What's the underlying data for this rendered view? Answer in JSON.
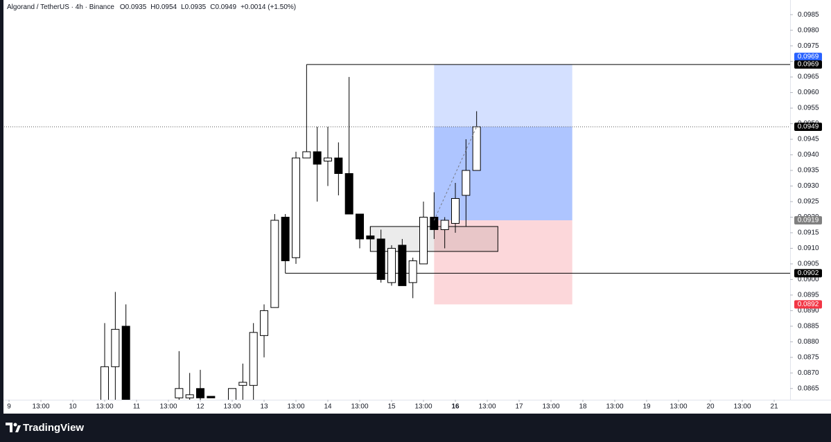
{
  "header": {
    "symbol": "Algorand / TetherUS · 4h · Binance",
    "ohlc": [
      "O0.0935",
      "H0.0954",
      "L0.0935",
      "C0.0949"
    ],
    "change": "+0.0014 (+1.50%)"
  },
  "chart_data": {
    "type": "candlestick",
    "x": [
      36,
      40,
      44,
      64,
      68,
      72,
      76,
      84,
      88,
      92,
      96,
      100,
      104,
      108,
      112,
      116,
      120,
      124,
      128,
      132,
      136,
      140,
      144,
      148,
      152,
      156,
      160,
      164,
      168,
      172,
      176
    ],
    "open": [
      0.086,
      0.0872,
      0.0885,
      0.0862,
      0.0862,
      0.0865,
      0.08625,
      0.086,
      0.0866,
      0.0866,
      0.0882,
      0.0891,
      0.092,
      0.0907,
      0.0939,
      0.0941,
      0.0938,
      0.0939,
      0.0934,
      0.0921,
      0.0914,
      0.0913,
      0.0899,
      0.0911,
      0.0899,
      0.0905,
      0.092,
      0.0916,
      0.0918,
      0.0927,
      0.0935
    ],
    "high": [
      0.0886,
      0.0896,
      0.0892,
      0.0877,
      0.087,
      0.0871,
      0.08625,
      0.0865,
      0.0873,
      0.0886,
      0.0892,
      0.0921,
      0.0921,
      0.0941,
      0.0969,
      0.0949,
      0.0949,
      0.0944,
      0.0965,
      0.0921,
      0.0917,
      0.0916,
      0.0911,
      0.0913,
      0.0907,
      0.0925,
      0.0928,
      0.092,
      0.0931,
      0.0945,
      0.0954
    ],
    "low": [
      0.0858,
      0.0858,
      0.0858,
      0.086,
      0.086,
      0.086,
      0.0862,
      0.086,
      0.086,
      0.086,
      0.0875,
      0.0891,
      0.0902,
      0.0905,
      0.0939,
      0.0925,
      0.093,
      0.0927,
      0.0921,
      0.091,
      0.0913,
      0.0899,
      0.0898,
      0.0898,
      0.0894,
      0.0905,
      0.0913,
      0.091,
      0.0915,
      0.0917,
      0.0935
    ],
    "close": [
      0.0872,
      0.0884,
      0.0858,
      0.0865,
      0.0863,
      0.0862,
      0.0862,
      0.0865,
      0.0867,
      0.0883,
      0.089,
      0.0919,
      0.0906,
      0.0939,
      0.0941,
      0.0937,
      0.0939,
      0.0934,
      0.0921,
      0.0913,
      0.0913,
      0.09,
      0.091,
      0.0898,
      0.0906,
      0.092,
      0.0916,
      0.0919,
      0.0926,
      0.0935,
      0.0949
    ],
    "up_color": "#ffffff",
    "down_color": "#000000",
    "xlim": [
      -3.4,
      294
    ],
    "ylim": [
      0.08614,
      0.09897
    ],
    "xticks": [
      {
        "value": 0,
        "label": "9"
      },
      {
        "value": 12,
        "label": "13:00"
      },
      {
        "value": 24,
        "label": "10"
      },
      {
        "value": 36,
        "label": "13:00"
      },
      {
        "value": 48,
        "label": "11"
      },
      {
        "value": 60,
        "label": "13:00"
      },
      {
        "value": 72,
        "label": "12"
      },
      {
        "value": 84,
        "label": "13:00"
      },
      {
        "value": 96,
        "label": "13"
      },
      {
        "value": 108,
        "label": "13:00"
      },
      {
        "value": 120,
        "label": "14"
      },
      {
        "value": 132,
        "label": "13:00"
      },
      {
        "value": 144,
        "label": "15"
      },
      {
        "value": 156,
        "label": "13:00"
      },
      {
        "value": 168,
        "label": "16"
      },
      {
        "value": 180,
        "label": "13:00"
      },
      {
        "value": 192,
        "label": "17"
      },
      {
        "value": 204,
        "label": "13:00"
      },
      {
        "value": 216,
        "label": "18"
      },
      {
        "value": 228,
        "label": "13:00"
      },
      {
        "value": 240,
        "label": "19"
      },
      {
        "value": 252,
        "label": "13:00"
      },
      {
        "value": 264,
        "label": "20"
      },
      {
        "value": 276,
        "label": "13:00"
      },
      {
        "value": 288,
        "label": "21"
      }
    ],
    "yticks": [
      0.0865,
      {
        "value": 0.087,
        "label": "0.0870"
      },
      0.0875,
      {
        "value": 0.088,
        "label": "0.0880"
      },
      0.0885,
      {
        "value": 0.089,
        "label": "0.0890"
      },
      0.0895,
      {
        "value": 0.09,
        "label": "0.0900"
      },
      0.0905,
      {
        "value": 0.091,
        "label": "0.0910"
      },
      0.0915,
      {
        "value": 0.092,
        "label": "0.0920"
      },
      0.0925,
      {
        "value": 0.093,
        "label": "0.0930"
      },
      0.0935,
      {
        "value": 0.094,
        "label": "0.0940"
      },
      0.0945,
      {
        "value": 0.095,
        "label": "0.0950"
      },
      0.0955,
      {
        "value": 0.096,
        "label": "0.0960"
      },
      0.0965,
      {
        "value": 0.097,
        "label": "0.0970"
      },
      0.0975,
      {
        "value": 0.098,
        "label": "0.0980"
      },
      0.0985
    ],
    "position": {
      "start": 160,
      "end": 212,
      "target": 0.0969,
      "entry": 0.0919,
      "stop": 0.0892
    },
    "zone": {
      "start": 136,
      "end": 184,
      "top": 0.0917,
      "bottom": 0.0909
    },
    "levels": [
      {
        "price": 0.0969,
        "start": 112
      },
      {
        "price": 0.0902,
        "start": 104
      }
    ],
    "price_labels": [
      {
        "value": 0.0969,
        "color": "#2962ff"
      },
      {
        "value": 0.0969,
        "color": "#000000"
      },
      {
        "value": 0.0949,
        "color": "#000000"
      },
      {
        "value": 0.0919,
        "color": "#808080"
      },
      {
        "value": 0.0902,
        "color": "#000000"
      },
      {
        "value": 0.0892,
        "color": "#f23645"
      }
    ]
  },
  "footer": {
    "brand": "TradingView"
  }
}
